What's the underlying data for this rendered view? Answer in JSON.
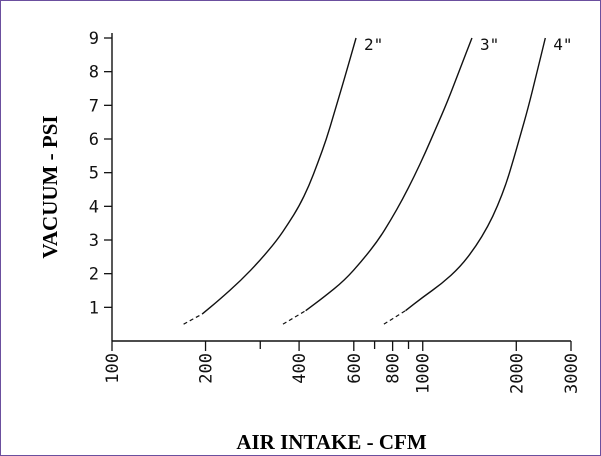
{
  "chart_data": {
    "type": "line",
    "title": "",
    "xlabel": "AIR INTAKE - CFM",
    "ylabel": "VACUUM - PSI",
    "xscale": "log",
    "xlim": [
      100,
      3000
    ],
    "ylim": [
      0,
      9
    ],
    "grid": false,
    "x_ticks": [
      100,
      200,
      400,
      600,
      800,
      1000,
      2000,
      3000
    ],
    "x_minor_ticks": [
      300,
      700,
      900
    ],
    "y_ticks": [
      1,
      2,
      3,
      4,
      5,
      6,
      7,
      8,
      9
    ],
    "series": [
      {
        "name": "2\"",
        "x": [
          170,
          195,
          220,
          260,
          300,
          340,
          370,
          400,
          430,
          460,
          490,
          520,
          560,
          610
        ],
        "y": [
          0.5,
          0.8,
          1.2,
          1.8,
          2.4,
          3.0,
          3.5,
          4.0,
          4.6,
          5.3,
          6.0,
          6.8,
          7.8,
          9.0
        ]
      },
      {
        "name": "3\"",
        "x": [
          355,
          420,
          480,
          560,
          640,
          720,
          790,
          860,
          940,
          1020,
          1100,
          1200,
          1320,
          1440
        ],
        "y": [
          0.5,
          0.9,
          1.3,
          1.8,
          2.4,
          3.0,
          3.6,
          4.2,
          4.9,
          5.6,
          6.3,
          7.1,
          8.1,
          9.0
        ]
      },
      {
        "name": "4\"",
        "x": [
          750,
          880,
          1000,
          1150,
          1320,
          1480,
          1620,
          1740,
          1860,
          1960,
          2060,
          2180,
          2320,
          2480
        ],
        "y": [
          0.5,
          0.9,
          1.3,
          1.7,
          2.2,
          2.8,
          3.4,
          4.0,
          4.7,
          5.4,
          6.1,
          6.9,
          7.9,
          9.0
        ]
      }
    ]
  }
}
